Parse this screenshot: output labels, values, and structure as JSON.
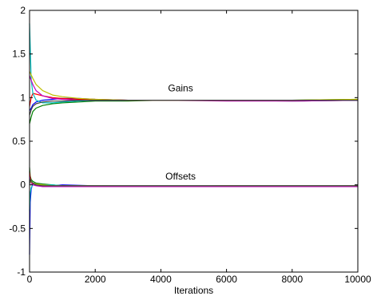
{
  "chart_data": {
    "type": "line",
    "title": "",
    "xlabel": "Iterations",
    "ylabel": "",
    "xlim": [
      0,
      10000
    ],
    "ylim": [
      -1,
      2
    ],
    "xticks": [
      0,
      2000,
      4000,
      6000,
      8000,
      10000
    ],
    "xtick_labels": [
      "0",
      "2000",
      "4000",
      "6000",
      "8000",
      "10000"
    ],
    "yticks": [
      -1,
      -0.5,
      0,
      0.5,
      1,
      1.5,
      2
    ],
    "ytick_labels": [
      "-1",
      "-0.5",
      "0",
      "0.5",
      "1",
      "1.5",
      "2"
    ],
    "grid": false,
    "annotations": [
      {
        "text": "Gains",
        "x": 4600,
        "y": 1.07
      },
      {
        "text": "Offsets",
        "x": 4600,
        "y": 0.06
      }
    ],
    "series": [
      {
        "color": "#0000ff",
        "x": [
          0,
          50,
          100,
          200,
          400,
          700,
          1000,
          1500,
          2000,
          3000,
          4000,
          6000,
          8000,
          10000
        ],
        "y": [
          0.85,
          0.88,
          0.92,
          0.95,
          0.97,
          0.98,
          0.99,
          0.99,
          0.98,
          0.97,
          0.97,
          0.97,
          0.97,
          0.97
        ]
      },
      {
        "color": "#008000",
        "x": [
          0,
          50,
          100,
          200,
          400,
          700,
          1000,
          1500,
          2000,
          3000,
          4000,
          6000,
          8000,
          10000
        ],
        "y": [
          0.7,
          0.78,
          0.84,
          0.88,
          0.91,
          0.93,
          0.94,
          0.95,
          0.96,
          0.96,
          0.97,
          0.97,
          0.97,
          0.98
        ]
      },
      {
        "color": "#ff0000",
        "x": [
          0,
          50,
          100,
          200,
          400,
          700,
          1000,
          1500,
          2000,
          3000,
          4000,
          6000,
          8000,
          10000
        ],
        "y": [
          0.9,
          1.0,
          1.05,
          1.04,
          1.02,
          1.0,
          0.99,
          0.98,
          0.98,
          0.97,
          0.97,
          0.97,
          0.96,
          0.97
        ]
      },
      {
        "color": "#00bfbf",
        "x": [
          0,
          50,
          100,
          200,
          400,
          700,
          1000,
          1500,
          2000,
          3000,
          4000,
          6000,
          8000,
          10000
        ],
        "y": [
          1.85,
          1.2,
          1.05,
          0.97,
          0.94,
          0.94,
          0.95,
          0.96,
          0.97,
          0.97,
          0.97,
          0.97,
          0.96,
          0.97
        ]
      },
      {
        "color": "#bf00bf",
        "x": [
          0,
          50,
          100,
          200,
          400,
          700,
          1000,
          1500,
          2000,
          3000,
          4000,
          6000,
          8000,
          10000
        ],
        "y": [
          1.25,
          1.2,
          1.15,
          1.08,
          1.02,
          0.99,
          0.98,
          0.97,
          0.97,
          0.97,
          0.97,
          0.96,
          0.96,
          0.97
        ]
      },
      {
        "color": "#bfbf00",
        "x": [
          0,
          50,
          100,
          200,
          400,
          700,
          1000,
          1500,
          2000,
          3000,
          4000,
          6000,
          8000,
          10000
        ],
        "y": [
          1.3,
          1.26,
          1.22,
          1.15,
          1.08,
          1.03,
          1.01,
          0.99,
          0.98,
          0.97,
          0.97,
          0.97,
          0.97,
          0.98
        ]
      },
      {
        "color": "#404040",
        "x": [
          0,
          50,
          100,
          200,
          400,
          700,
          1000,
          1500,
          2000,
          3000,
          4000,
          6000,
          8000,
          10000
        ],
        "y": [
          0.8,
          0.86,
          0.9,
          0.93,
          0.95,
          0.96,
          0.96,
          0.97,
          0.97,
          0.97,
          0.97,
          0.97,
          0.97,
          0.97
        ]
      },
      {
        "color": "#0000ff",
        "x": [
          0,
          20,
          50,
          100,
          200,
          400,
          700,
          1000,
          2000,
          4000,
          6000,
          8000,
          10000
        ],
        "y": [
          -0.8,
          -0.2,
          -0.05,
          0.02,
          0.01,
          0.0,
          -0.01,
          0.0,
          -0.01,
          -0.01,
          -0.01,
          -0.01,
          -0.01
        ]
      },
      {
        "color": "#008000",
        "x": [
          0,
          20,
          50,
          100,
          200,
          400,
          700,
          1000,
          2000,
          4000,
          6000,
          8000,
          10000
        ],
        "y": [
          0.2,
          0.1,
          0.06,
          0.04,
          0.02,
          0.01,
          0.0,
          -0.01,
          -0.01,
          -0.02,
          -0.01,
          -0.01,
          -0.01
        ]
      },
      {
        "color": "#ff0000",
        "x": [
          0,
          20,
          50,
          100,
          200,
          400,
          700,
          1000,
          2000,
          4000,
          6000,
          8000,
          10000
        ],
        "y": [
          0.15,
          0.08,
          0.03,
          0.01,
          0.0,
          -0.01,
          -0.02,
          -0.01,
          -0.02,
          -0.02,
          -0.01,
          -0.02,
          -0.01
        ]
      },
      {
        "color": "#00bfbf",
        "x": [
          0,
          20,
          50,
          100,
          200,
          400,
          700,
          1000,
          2000,
          4000,
          6000,
          8000,
          10000
        ],
        "y": [
          -0.3,
          -0.1,
          -0.03,
          0.0,
          0.01,
          0.0,
          0.0,
          -0.01,
          -0.01,
          -0.01,
          -0.01,
          -0.01,
          -0.01
        ]
      },
      {
        "color": "#bf00bf",
        "x": [
          0,
          20,
          50,
          100,
          200,
          400,
          700,
          1000,
          2000,
          4000,
          6000,
          8000,
          10000
        ],
        "y": [
          0.1,
          0.05,
          0.02,
          0.0,
          -0.01,
          -0.02,
          -0.02,
          -0.02,
          -0.02,
          -0.02,
          -0.02,
          -0.02,
          -0.02
        ]
      },
      {
        "color": "#bfbf00",
        "x": [
          0,
          20,
          50,
          100,
          200,
          400,
          700,
          1000,
          2000,
          4000,
          6000,
          8000,
          10000
        ],
        "y": [
          0.05,
          0.04,
          0.03,
          0.02,
          0.01,
          0.0,
          -0.01,
          -0.01,
          -0.01,
          -0.01,
          -0.01,
          -0.01,
          -0.01
        ]
      },
      {
        "color": "#404040",
        "x": [
          0,
          20,
          50,
          100,
          200,
          400,
          700,
          1000,
          2000,
          4000,
          6000,
          8000,
          10000
        ],
        "y": [
          0.0,
          0.06,
          0.04,
          0.02,
          0.0,
          -0.01,
          -0.01,
          -0.01,
          -0.01,
          -0.01,
          -0.01,
          -0.01,
          -0.01
        ]
      }
    ]
  }
}
